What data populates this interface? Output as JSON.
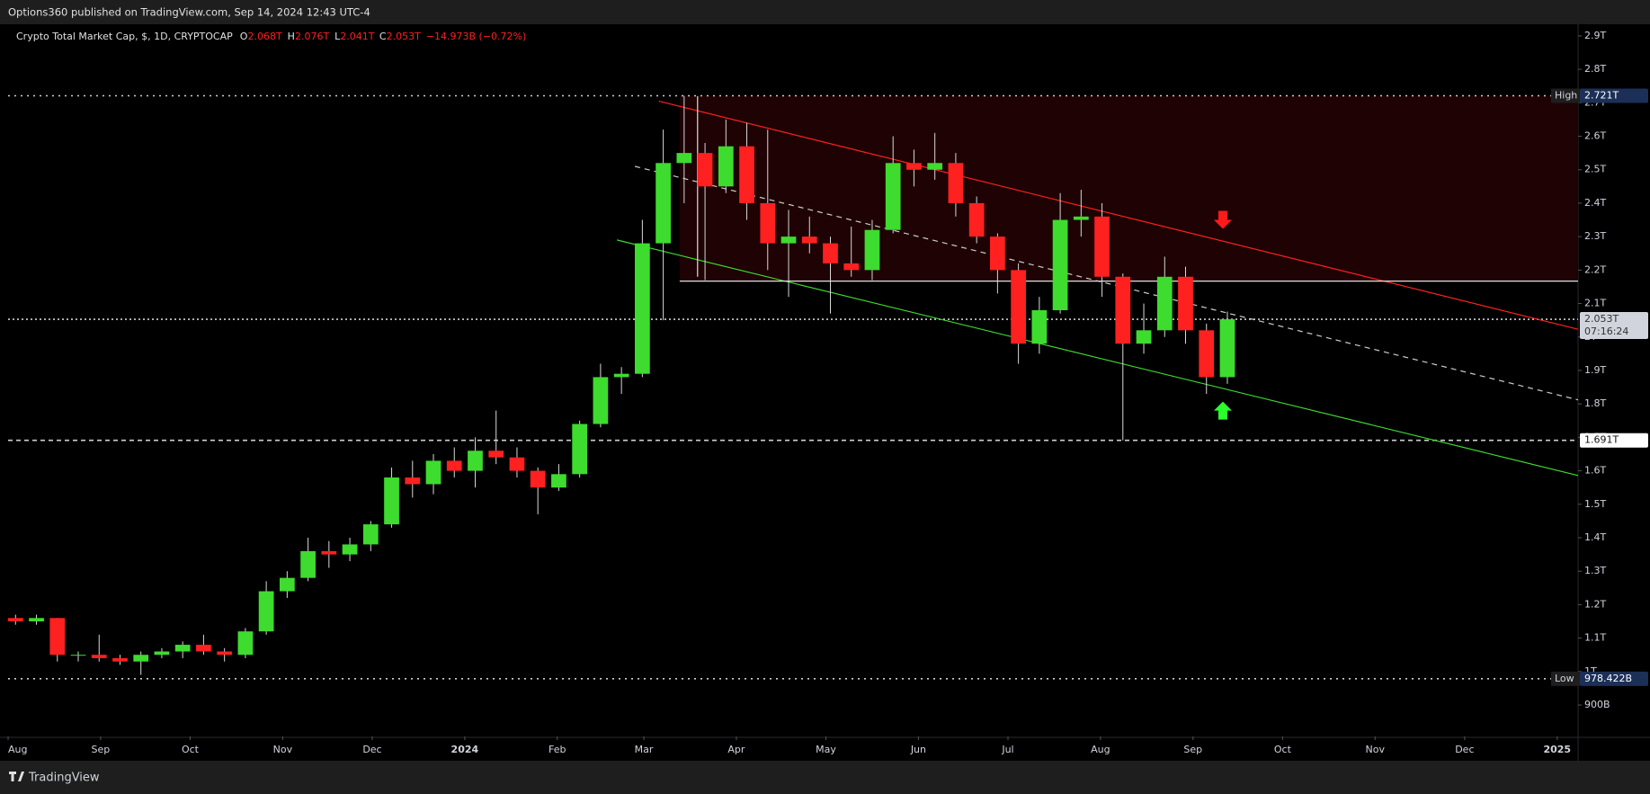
{
  "header": {
    "published": "Options360 published on TradingView.com, Sep 14, 2024 12:43 UTC-4"
  },
  "footer": {
    "brand": "TradingView"
  },
  "chart_data": {
    "type": "candlestick",
    "legend": {
      "name": "Crypto Total Market Cap, $, 1D, CRYPTOCAP",
      "ohlc": [
        {
          "key": "O",
          "value": "2.068T"
        },
        {
          "key": "H",
          "value": "2.076T"
        },
        {
          "key": "L",
          "value": "2.041T"
        },
        {
          "key": "C",
          "value": "2.053T"
        }
      ],
      "change": "−14.973B (−0.72%)"
    },
    "up_color": "#3ddc2e",
    "down_color": "#ff2020",
    "wick_color": "#d8d8d8",
    "x": [
      "2023-07-31",
      "2023-08-07",
      "2023-08-14",
      "2023-08-21",
      "2023-08-28",
      "2023-09-04",
      "2023-09-11",
      "2023-09-18",
      "2023-09-25",
      "2023-10-02",
      "2023-10-09",
      "2023-10-16",
      "2023-10-23",
      "2023-10-30",
      "2023-11-06",
      "2023-11-13",
      "2023-11-20",
      "2023-11-27",
      "2023-12-04",
      "2023-12-11",
      "2023-12-18",
      "2023-12-25",
      "2024-01-01",
      "2024-01-08",
      "2024-01-15",
      "2024-01-22",
      "2024-01-29",
      "2024-02-05",
      "2024-02-12",
      "2024-02-19",
      "2024-02-26",
      "2024-03-04",
      "2024-03-11",
      "2024-03-18",
      "2024-03-25",
      "2024-04-01",
      "2024-04-08",
      "2024-04-15",
      "2024-04-22",
      "2024-04-29",
      "2024-05-06",
      "2024-05-13",
      "2024-05-20",
      "2024-05-27",
      "2024-06-03",
      "2024-06-10",
      "2024-06-17",
      "2024-06-24",
      "2024-07-01",
      "2024-07-08",
      "2024-07-15",
      "2024-07-22",
      "2024-07-29",
      "2024-08-05",
      "2024-08-12",
      "2024-08-19",
      "2024-08-26",
      "2024-09-02",
      "2024-09-09"
    ],
    "open": [
      1.16,
      1.15,
      1.16,
      1.05,
      1.05,
      1.04,
      1.03,
      1.05,
      1.06,
      1.08,
      1.06,
      1.05,
      1.12,
      1.24,
      1.28,
      1.36,
      1.35,
      1.38,
      1.44,
      1.58,
      1.56,
      1.63,
      1.6,
      1.66,
      1.64,
      1.6,
      1.55,
      1.59,
      1.74,
      1.88,
      1.89,
      2.28,
      2.52,
      2.55,
      2.45,
      2.57,
      2.4,
      2.28,
      2.3,
      2.28,
      2.22,
      2.2,
      2.32,
      2.52,
      2.5,
      2.52,
      2.4,
      2.3,
      2.2,
      1.98,
      2.08,
      2.35,
      2.36,
      2.18,
      1.98,
      2.02,
      2.18,
      2.02,
      1.88
    ],
    "high": [
      1.17,
      1.17,
      1.16,
      1.06,
      1.11,
      1.05,
      1.06,
      1.07,
      1.09,
      1.11,
      1.07,
      1.13,
      1.27,
      1.3,
      1.4,
      1.39,
      1.4,
      1.45,
      1.61,
      1.63,
      1.65,
      1.67,
      1.7,
      1.78,
      1.67,
      1.61,
      1.62,
      1.75,
      1.92,
      1.91,
      2.35,
      2.62,
      2.721,
      2.58,
      2.65,
      2.64,
      2.62,
      2.38,
      2.36,
      2.3,
      2.33,
      2.35,
      2.6,
      2.56,
      2.61,
      2.55,
      2.42,
      2.31,
      2.22,
      2.12,
      2.43,
      2.44,
      2.4,
      2.19,
      2.1,
      2.24,
      2.21,
      2.04,
      2.076
    ],
    "low": [
      1.14,
      1.14,
      1.03,
      1.03,
      1.03,
      1.02,
      0.99,
      1.04,
      1.04,
      1.05,
      1.03,
      1.04,
      1.11,
      1.22,
      1.27,
      1.31,
      1.33,
      1.36,
      1.43,
      1.52,
      1.53,
      1.58,
      1.55,
      1.62,
      1.58,
      1.47,
      1.54,
      1.58,
      1.73,
      1.83,
      1.88,
      2.05,
      2.4,
      2.17,
      2.43,
      2.35,
      2.2,
      2.12,
      2.25,
      2.07,
      2.18,
      2.17,
      2.31,
      2.45,
      2.47,
      2.36,
      2.28,
      2.13,
      1.92,
      1.95,
      2.07,
      2.3,
      2.12,
      1.691,
      1.95,
      2.0,
      1.98,
      1.83,
      1.86
    ],
    "close": [
      1.15,
      1.16,
      1.05,
      1.05,
      1.04,
      1.03,
      1.05,
      1.06,
      1.08,
      1.06,
      1.05,
      1.12,
      1.24,
      1.28,
      1.36,
      1.35,
      1.38,
      1.44,
      1.58,
      1.56,
      1.63,
      1.6,
      1.66,
      1.64,
      1.6,
      1.55,
      1.59,
      1.74,
      1.88,
      1.89,
      2.28,
      2.52,
      2.55,
      2.45,
      2.57,
      2.4,
      2.28,
      2.3,
      2.28,
      2.22,
      2.2,
      2.32,
      2.52,
      2.5,
      2.52,
      2.4,
      2.3,
      2.2,
      1.98,
      2.08,
      2.35,
      2.36,
      2.18,
      1.98,
      2.02,
      2.18,
      2.02,
      1.88,
      2.053
    ],
    "xlim": [
      "2023-08-01",
      "2025-01-08"
    ],
    "xticks": [
      {
        "value": "2023-08-01",
        "label": "Aug"
      },
      {
        "value": "2023-09-01",
        "label": "Sep"
      },
      {
        "value": "2023-10-01",
        "label": "Oct"
      },
      {
        "value": "2023-11-01",
        "label": "Nov"
      },
      {
        "value": "2023-12-01",
        "label": "Dec"
      },
      {
        "value": "2024-01-01",
        "label": "2024"
      },
      {
        "value": "2024-02-01",
        "label": "Feb"
      },
      {
        "value": "2024-03-01",
        "label": "Mar"
      },
      {
        "value": "2024-04-01",
        "label": "Apr"
      },
      {
        "value": "2024-05-01",
        "label": "May"
      },
      {
        "value": "2024-06-01",
        "label": "Jun"
      },
      {
        "value": "2024-07-01",
        "label": "Jul"
      },
      {
        "value": "2024-08-01",
        "label": "Aug"
      },
      {
        "value": "2024-09-01",
        "label": "Sep"
      },
      {
        "value": "2024-10-01",
        "label": "Oct"
      },
      {
        "value": "2024-11-01",
        "label": "Nov"
      },
      {
        "value": "2024-12-01",
        "label": "Dec"
      },
      {
        "value": "2025-01-01",
        "label": "2025"
      }
    ],
    "ylim": [
      0.806,
      2.932
    ],
    "yticks": [
      {
        "value": 2.9,
        "label": "2.9T"
      },
      {
        "value": 2.8,
        "label": "2.8T"
      },
      {
        "value": 2.7,
        "label": "2.7T"
      },
      {
        "value": 2.6,
        "label": "2.6T"
      },
      {
        "value": 2.5,
        "label": "2.5T"
      },
      {
        "value": 2.4,
        "label": "2.4T"
      },
      {
        "value": 2.3,
        "label": "2.3T"
      },
      {
        "value": 2.2,
        "label": "2.2T"
      },
      {
        "value": 2.1,
        "label": "2.1T"
      },
      {
        "value": 2.0,
        "label": "2T"
      },
      {
        "value": 1.9,
        "label": "1.9T"
      },
      {
        "value": 1.8,
        "label": "1.8T"
      },
      {
        "value": 1.7,
        "label": "1.7T"
      },
      {
        "value": 1.6,
        "label": "1.6T"
      },
      {
        "value": 1.5,
        "label": "1.5T"
      },
      {
        "value": 1.4,
        "label": "1.4T"
      },
      {
        "value": 1.3,
        "label": "1.3T"
      },
      {
        "value": 1.2,
        "label": "1.2T"
      },
      {
        "value": 1.1,
        "label": "1.1T"
      },
      {
        "value": 1.0,
        "label": "1T"
      },
      {
        "value": 0.9,
        "label": "900B"
      }
    ],
    "high_mark": {
      "name": "High",
      "value": 2.721,
      "label": "2.721T"
    },
    "low_mark": {
      "name": "Low",
      "value": 0.978422,
      "label": "978.422B"
    },
    "last_price": {
      "value": 2.053,
      "label": "2.053T",
      "countdown": "07:16:24"
    },
    "level": {
      "value": 1.691,
      "label": "1.691T"
    },
    "zone": {
      "from": "2024-03-13",
      "to": "2025-01-08",
      "top": 2.721,
      "bottom": 2.167,
      "color": "#1e0204"
    },
    "lines": [
      {
        "color": "#ff2020",
        "dash": false,
        "from": {
          "x": "2024-03-06",
          "y": 2.705
        },
        "to": {
          "x": "2025-01-08",
          "y": 2.023
        }
      },
      {
        "color": "#3ddc2e",
        "dash": false,
        "from": {
          "x": "2024-02-21",
          "y": 2.29
        },
        "to": {
          "x": "2025-01-08",
          "y": 1.586
        }
      },
      {
        "color": "#cccccc",
        "dash": true,
        "from": {
          "x": "2024-02-27",
          "y": 2.51
        },
        "to": {
          "x": "2025-01-08",
          "y": 1.812
        }
      },
      {
        "color": "#e0e0e0",
        "dash": false,
        "from": {
          "x": "2024-03-13",
          "y": 2.167
        },
        "to": {
          "x": "2025-01-08",
          "y": 2.167
        }
      },
      {
        "color": "#e0e0e0",
        "dash": false,
        "from": {
          "x": "2024-03-19",
          "y": 2.72
        },
        "to": {
          "x": "2024-03-19",
          "y": 2.18
        }
      }
    ],
    "arrows": [
      {
        "direction": "down",
        "color": "#ff1a1a",
        "x": "2024-09-11",
        "y": 2.35
      },
      {
        "direction": "up",
        "color": "#2bff2b",
        "x": "2024-09-11",
        "y": 1.78
      }
    ]
  }
}
